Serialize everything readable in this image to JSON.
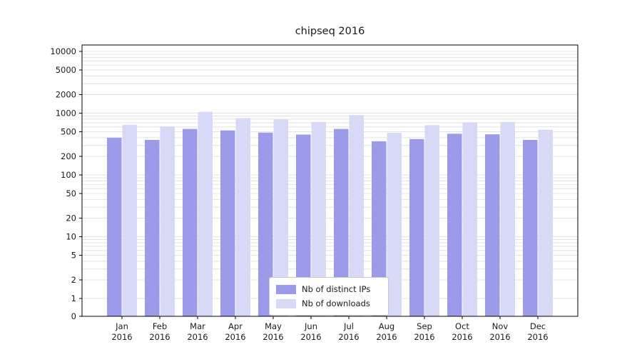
{
  "chart_data": {
    "type": "bar",
    "title": "chipseq 2016",
    "xlabel": "",
    "ylabel": "",
    "yscale": "log",
    "grid": "horizontal-minor",
    "legend_position": "bottom-center-inside",
    "yticks": [
      0,
      1,
      2,
      5,
      10,
      20,
      50,
      100,
      200,
      500,
      1000,
      2000,
      5000,
      10000
    ],
    "months": [
      "Jan",
      "Feb",
      "Mar",
      "Apr",
      "May",
      "Jun",
      "Jul",
      "Aug",
      "Sep",
      "Oct",
      "Nov",
      "Dec"
    ],
    "year": "2016",
    "series": [
      {
        "name": "Nb of distinct IPs",
        "color": "#9b9bea",
        "values": [
          400,
          370,
          555,
          525,
          485,
          450,
          555,
          350,
          380,
          465,
          455,
          370
        ]
      },
      {
        "name": "Nb of downloads",
        "color": "#d8d8f7",
        "values": [
          650,
          610,
          1050,
          830,
          790,
          720,
          930,
          480,
          640,
          710,
          720,
          540
        ]
      }
    ],
    "colors": {
      "gridline": "#e4e4e4",
      "axis": "#000000",
      "text": "#1a1a1a",
      "background": "#ffffff"
    }
  }
}
